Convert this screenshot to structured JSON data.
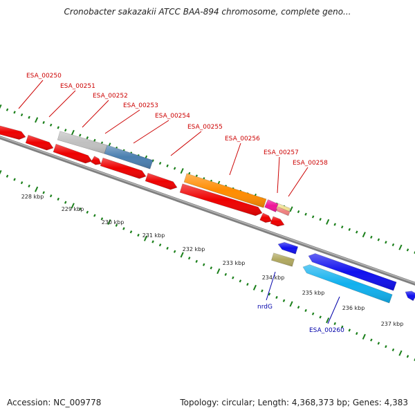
{
  "header": {
    "title": "Cronobacter sakazakii ATCC BAA-894 chromosome, complete geno..."
  },
  "footer": {
    "accession": "Accession: NC_009778",
    "summary": "Topology: circular; Length: 4,368,373 bp; Genes: 4,383"
  },
  "scale_labels": [
    "228 kbp",
    "229 kbp",
    "230 kbp",
    "231 kbp",
    "232 kbp",
    "233 kbp",
    "234 kbp",
    "235 kbp",
    "236 kbp",
    "237 kbp"
  ],
  "gene_labels": {
    "ESA_00250": "ESA_00250",
    "ESA_00251": "ESA_00251",
    "ESA_00252": "ESA_00252",
    "ESA_00253": "ESA_00253",
    "ESA_00254": "ESA_00254",
    "ESA_00255": "ESA_00255",
    "ESA_00256": "ESA_00256",
    "ESA_00257": "ESA_00257",
    "ESA_00258": "ESA_00258",
    "nrdG": "nrdG",
    "ESA_00260": "ESA_00260"
  },
  "colors": {
    "red_gene": "#ee0000",
    "gray_gene": "#c0c0c0",
    "steelblue_gene": "#4a7fb0",
    "orange_gene": "#ff8c00",
    "magenta_gene": "#ee1599",
    "salmon_gene": "#f08080",
    "khaki_gene": "#f0e090",
    "blue_gene": "#1010ee",
    "cyan_gene": "#10b0ee",
    "olive_gene": "#b0a860",
    "tick_green": "#1a7f1a",
    "label_red": "#cc0000",
    "label_blue": "#0000aa"
  }
}
